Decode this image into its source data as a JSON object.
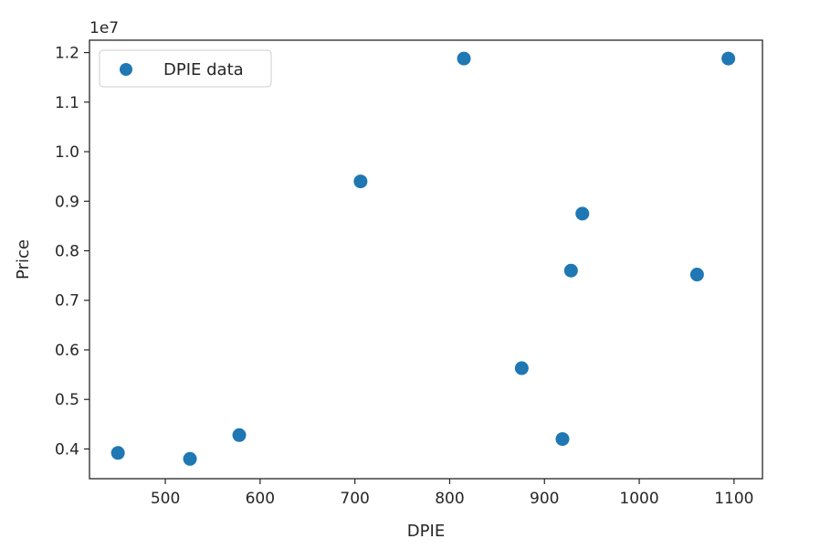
{
  "chart_data": {
    "type": "scatter",
    "xlabel": "DPIE",
    "ylabel": "Price",
    "y_multiplier_label": "1e7",
    "xlim": [
      420,
      1130
    ],
    "ylim": [
      0.34,
      1.225
    ],
    "x_ticks": [
      500,
      600,
      700,
      800,
      900,
      1000,
      1100
    ],
    "x_tick_labels": [
      "500",
      "600",
      "700",
      "800",
      "900",
      "1000",
      "1100"
    ],
    "y_ticks": [
      0.4,
      0.5,
      0.6,
      0.7,
      0.8,
      0.9,
      1.0,
      1.1,
      1.2
    ],
    "y_tick_labels": [
      "0.4",
      "0.5",
      "0.6",
      "0.7",
      "0.8",
      "0.9",
      "1.0",
      "1.1",
      "1.2"
    ],
    "grid": false,
    "legend_position": "top-left",
    "series": [
      {
        "name": "DPIE data",
        "color": "#1f77b4",
        "points": [
          {
            "x": 450,
            "y": 0.392
          },
          {
            "x": 526,
            "y": 0.38
          },
          {
            "x": 578,
            "y": 0.428
          },
          {
            "x": 706,
            "y": 0.94
          },
          {
            "x": 815,
            "y": 1.188
          },
          {
            "x": 876,
            "y": 0.563
          },
          {
            "x": 919,
            "y": 0.42
          },
          {
            "x": 928,
            "y": 0.76
          },
          {
            "x": 940,
            "y": 0.875
          },
          {
            "x": 1061,
            "y": 0.752
          },
          {
            "x": 1094,
            "y": 1.188
          }
        ]
      }
    ]
  }
}
